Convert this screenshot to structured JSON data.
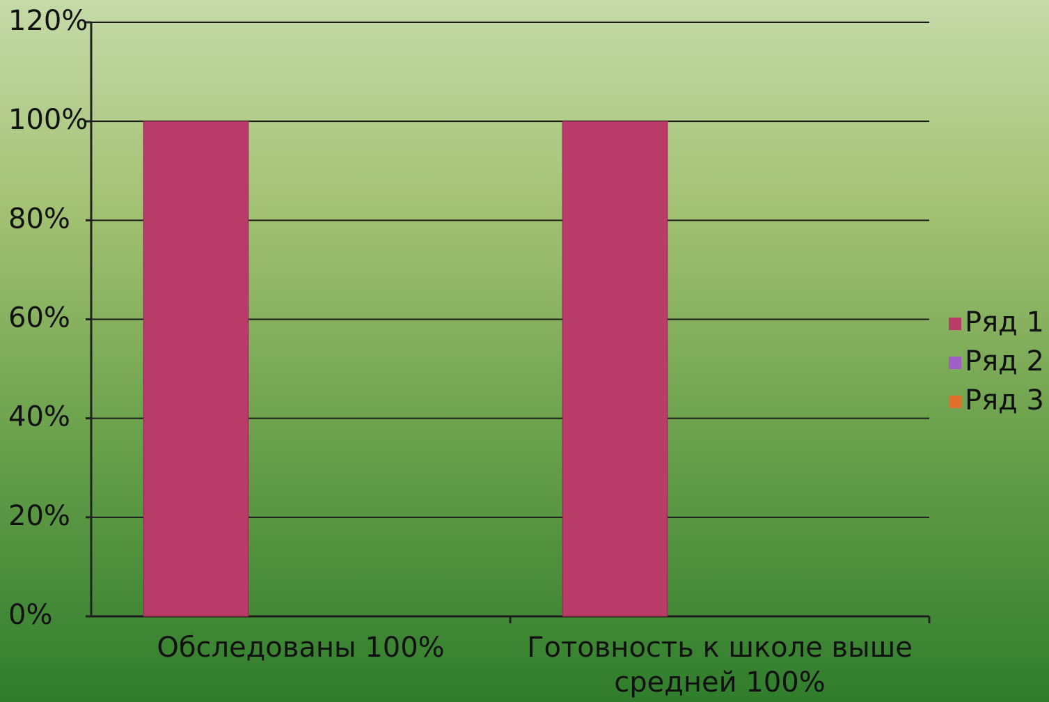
{
  "chart_data": {
    "type": "bar",
    "categories": [
      "Обследованы 100%",
      "Готовность к школе выше средней 100%"
    ],
    "series": [
      {
        "name": "Ряд 1",
        "color": "#b83b68",
        "values": [
          100,
          100
        ]
      },
      {
        "name": "Ряд 2",
        "color": "#9e5fc6",
        "values": [
          null,
          null
        ]
      },
      {
        "name": "Ряд 3",
        "color": "#e0702e",
        "values": [
          null,
          null
        ]
      }
    ],
    "ylim": [
      0,
      120
    ],
    "yticks": [
      {
        "value": 0,
        "label": "0%"
      },
      {
        "value": 20,
        "label": "20%"
      },
      {
        "value": 40,
        "label": "40%"
      },
      {
        "value": 60,
        "label": "60%"
      },
      {
        "value": 80,
        "label": "80%"
      },
      {
        "value": 100,
        "label": "100%"
      },
      {
        "value": 120,
        "label": "120%"
      }
    ],
    "grid": true,
    "legend": "right"
  }
}
